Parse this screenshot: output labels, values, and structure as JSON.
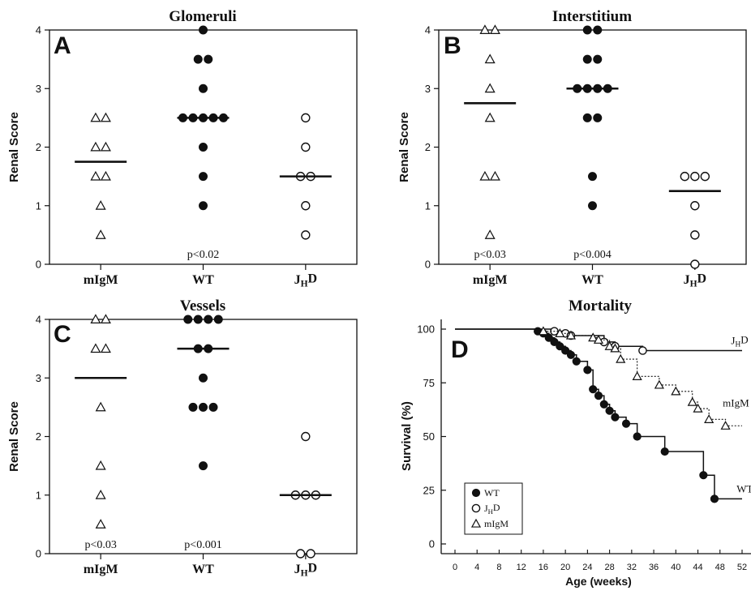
{
  "chart_data": [
    {
      "type": "scatter",
      "panel_letter": "A",
      "title": "Glomeruli",
      "ylabel": "Renal Score",
      "ylim": [
        0,
        4
      ],
      "yticks": [
        "0",
        "1",
        "2",
        "3",
        "4"
      ],
      "categories": [
        {
          "label": "mIgM",
          "sub": "",
          "marker": "triangle-open",
          "median": 1.75,
          "pvalue": "",
          "points": [
            2.5,
            2.5,
            2.0,
            2.0,
            1.5,
            1.5,
            1.0,
            0.5
          ]
        },
        {
          "label": "WT",
          "sub": "",
          "marker": "circle-filled",
          "median": 2.5,
          "pvalue": "p<0.02",
          "points": [
            4.0,
            3.5,
            3.5,
            3.0,
            2.5,
            2.5,
            2.5,
            2.5,
            2.5,
            2.0,
            1.5,
            1.0
          ]
        },
        {
          "label": "J",
          "sub": "H",
          "suffix": "D",
          "marker": "circle-open",
          "median": 1.5,
          "pvalue": "",
          "points": [
            2.5,
            2.0,
            1.5,
            1.5,
            1.0,
            0.5
          ]
        }
      ]
    },
    {
      "type": "scatter",
      "panel_letter": "B",
      "title": "Interstitium",
      "ylabel": "Renal Score",
      "ylim": [
        0,
        4
      ],
      "yticks": [
        "0",
        "1",
        "2",
        "3",
        "4"
      ],
      "categories": [
        {
          "label": "mIgM",
          "sub": "",
          "marker": "triangle-open",
          "median": 2.75,
          "pvalue": "p<0.03",
          "points": [
            4.0,
            4.0,
            3.5,
            3.0,
            2.5,
            1.5,
            1.5,
            0.5
          ]
        },
        {
          "label": "WT",
          "sub": "",
          "marker": "circle-filled",
          "median": 3.0,
          "pvalue": "p<0.004",
          "points": [
            4.0,
            4.0,
            3.5,
            3.5,
            3.0,
            3.0,
            3.0,
            3.0,
            2.5,
            2.5,
            1.5,
            1.0
          ]
        },
        {
          "label": "J",
          "sub": "H",
          "suffix": "D",
          "marker": "circle-open",
          "median": 1.25,
          "pvalue": "",
          "points": [
            1.5,
            1.5,
            1.5,
            1.0,
            0.5,
            0.0
          ]
        }
      ]
    },
    {
      "type": "scatter",
      "panel_letter": "C",
      "title": "Vessels",
      "ylabel": "Renal Score",
      "ylim": [
        0,
        4
      ],
      "yticks": [
        "0",
        "1",
        "2",
        "3",
        "4"
      ],
      "categories": [
        {
          "label": "mIgM",
          "sub": "",
          "marker": "triangle-open",
          "median": 3.0,
          "pvalue": "p<0.03",
          "points": [
            4.0,
            4.0,
            3.5,
            3.5,
            2.5,
            1.5,
            1.0,
            0.5
          ]
        },
        {
          "label": "WT",
          "sub": "",
          "marker": "circle-filled",
          "median": 3.5,
          "pvalue": "p<0.001",
          "points": [
            4.0,
            4.0,
            4.0,
            4.0,
            3.5,
            3.5,
            3.0,
            2.5,
            2.5,
            2.5,
            1.5
          ]
        },
        {
          "label": "J",
          "sub": "H",
          "suffix": "D",
          "marker": "circle-open",
          "median": 1.0,
          "pvalue": "",
          "points": [
            2.0,
            1.0,
            1.0,
            1.0,
            0.0,
            0.0
          ]
        }
      ]
    },
    {
      "type": "line",
      "panel_letter": "D",
      "title": "Mortality",
      "xlabel": "Age (weeks)",
      "ylabel": "Survival (%)",
      "xlim": [
        0,
        52
      ],
      "ylim": [
        0,
        100
      ],
      "xticks": [
        "0",
        "4",
        "8",
        "12",
        "16",
        "20",
        "24",
        "28",
        "32",
        "36",
        "40",
        "44",
        "48",
        "52"
      ],
      "yticks": [
        "0",
        "25",
        "50",
        "75",
        "100"
      ],
      "legend": [
        {
          "marker": "circle-filled",
          "label": "WT"
        },
        {
          "marker": "circle-open",
          "label": "J",
          "sub": "H",
          "suffix": "D"
        },
        {
          "marker": "triangle-open",
          "label": "mIgM"
        }
      ],
      "series": [
        {
          "label": "WT",
          "sub": "",
          "suffix": "",
          "marker": "circle-filled",
          "style": "solid",
          "end_label_at": [
            51,
            24
          ],
          "steps": [
            [
              0,
              100
            ],
            [
              15,
              99
            ],
            [
              16,
              98
            ],
            [
              17,
              96
            ],
            [
              18,
              94
            ],
            [
              19,
              92
            ],
            [
              20,
              90
            ],
            [
              21,
              88
            ],
            [
              22,
              85
            ],
            [
              24,
              81
            ],
            [
              25,
              72
            ],
            [
              26,
              69
            ],
            [
              27,
              65
            ],
            [
              28,
              62
            ],
            [
              29,
              59
            ],
            [
              31,
              56
            ],
            [
              33,
              50
            ],
            [
              38,
              43
            ],
            [
              45,
              32
            ],
            [
              47,
              21
            ],
            [
              52,
              21
            ]
          ],
          "markers": [
            [
              15,
              99
            ],
            [
              16,
              98
            ],
            [
              17,
              96
            ],
            [
              18,
              94
            ],
            [
              19,
              92
            ],
            [
              20,
              90
            ],
            [
              21,
              88
            ],
            [
              22,
              85
            ],
            [
              24,
              81
            ],
            [
              25,
              72
            ],
            [
              26,
              69
            ],
            [
              27,
              65
            ],
            [
              28,
              62
            ],
            [
              29,
              59
            ],
            [
              31,
              56
            ],
            [
              33,
              50
            ],
            [
              38,
              43
            ],
            [
              45,
              32
            ],
            [
              47,
              21
            ]
          ]
        },
        {
          "label": "J",
          "sub": "H",
          "suffix": "D",
          "marker": "circle-open",
          "style": "solid",
          "end_label_at": [
            50,
            93
          ],
          "steps": [
            [
              0,
              100
            ],
            [
              18,
              99
            ],
            [
              20,
              98
            ],
            [
              21,
              97
            ],
            [
              27,
              94
            ],
            [
              29,
              92
            ],
            [
              34,
              90
            ],
            [
              52,
              90
            ]
          ],
          "markers": [
            [
              18,
              99
            ],
            [
              20,
              98
            ],
            [
              21,
              97
            ],
            [
              27,
              94
            ],
            [
              29,
              92
            ],
            [
              34,
              90
            ]
          ]
        },
        {
          "label": "mIgM",
          "sub": "",
          "suffix": "",
          "marker": "triangle-open",
          "style": "dotted",
          "end_label_at": [
            48.5,
            64
          ],
          "steps": [
            [
              0,
              100
            ],
            [
              16,
              99
            ],
            [
              19,
              98
            ],
            [
              21,
              97
            ],
            [
              25,
              96
            ],
            [
              26,
              95
            ],
            [
              28,
              92
            ],
            [
              29,
              91
            ],
            [
              30,
              86
            ],
            [
              33,
              78
            ],
            [
              37,
              74
            ],
            [
              40,
              71
            ],
            [
              43,
              66
            ],
            [
              44,
              63
            ],
            [
              46,
              58
            ],
            [
              49,
              55
            ],
            [
              52,
              55
            ]
          ],
          "markers": [
            [
              16,
              99
            ],
            [
              19,
              98
            ],
            [
              21,
              97
            ],
            [
              25,
              96
            ],
            [
              26,
              95
            ],
            [
              28,
              92
            ],
            [
              29,
              91
            ],
            [
              30,
              86
            ],
            [
              33,
              78
            ],
            [
              37,
              74
            ],
            [
              40,
              71
            ],
            [
              43,
              66
            ],
            [
              44,
              63
            ],
            [
              46,
              58
            ],
            [
              49,
              55
            ]
          ]
        }
      ]
    }
  ]
}
